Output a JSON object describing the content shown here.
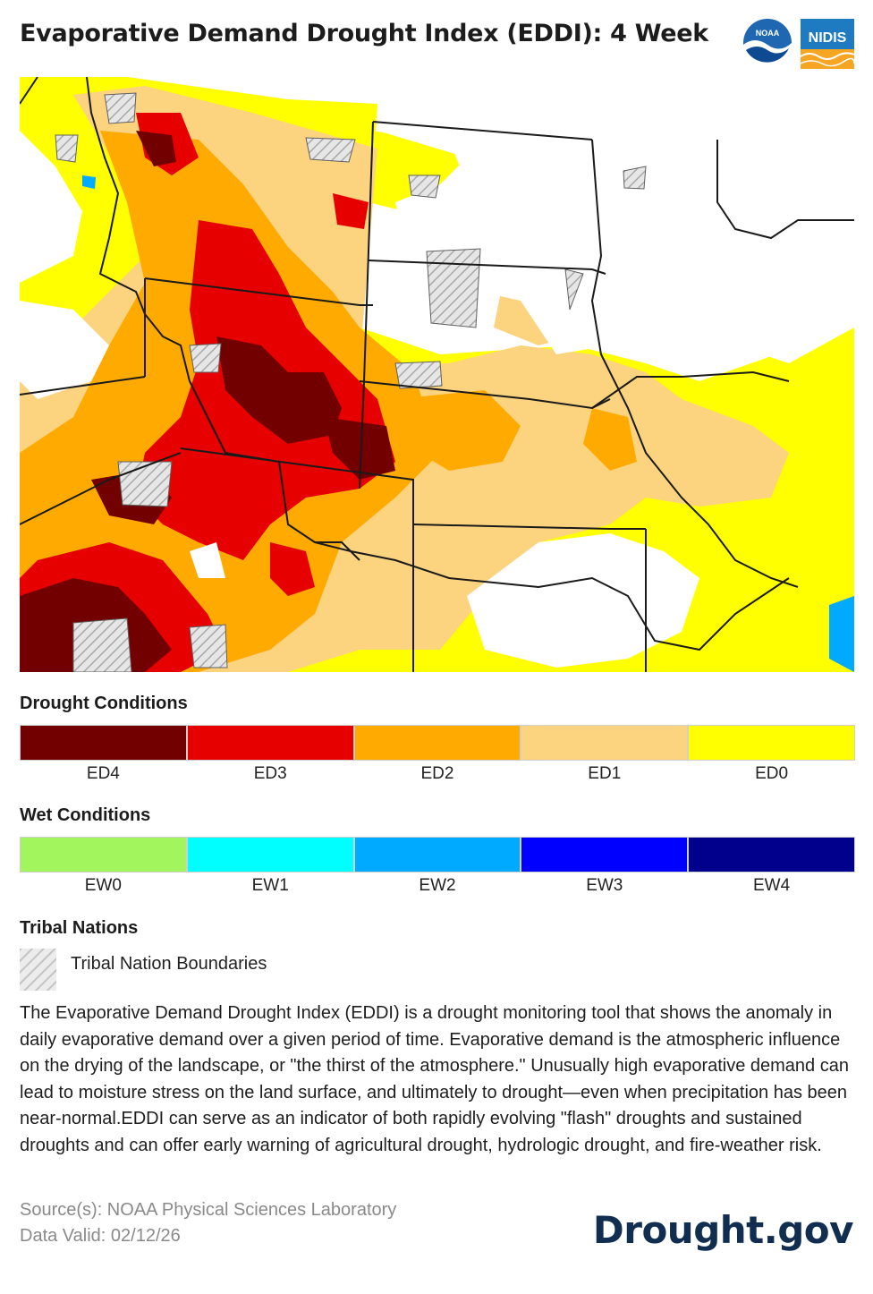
{
  "title": "Evaporative Demand Drought Index (EDDI): 4 Week",
  "logos": {
    "noaa_text": "NOAA",
    "nidis_text": "NIDIS"
  },
  "legend": {
    "drought": {
      "heading": "Drought Conditions",
      "items": [
        {
          "label": "ED4",
          "color": "#730000"
        },
        {
          "label": "ED3",
          "color": "#e60000"
        },
        {
          "label": "ED2",
          "color": "#ffaa00"
        },
        {
          "label": "ED1",
          "color": "#fcd37f"
        },
        {
          "label": "ED0",
          "color": "#ffff00"
        }
      ]
    },
    "wet": {
      "heading": "Wet Conditions",
      "items": [
        {
          "label": "EW0",
          "color": "#a2f55c"
        },
        {
          "label": "EW1",
          "color": "#00ffff"
        },
        {
          "label": "EW2",
          "color": "#00aaff"
        },
        {
          "label": "EW3",
          "color": "#0000ff"
        },
        {
          "label": "EW4",
          "color": "#00008c"
        }
      ]
    },
    "tribal": {
      "heading": "Tribal Nations",
      "label": "Tribal Nation Boundaries"
    }
  },
  "description": "The Evaporative Demand Drought Index (EDDI) is a drought monitoring tool that shows the anomaly in daily evaporative demand over a given period of time. Evaporative demand is the atmospheric influence on the drying of the landscape, or \"the thirst of the atmosphere.\" Unusually high evaporative demand can lead to moisture stress on the land surface, and ultimately to drought—even when precipitation has been near-normal.EDDI can serve as an indicator of both rapidly evolving \"flash\" droughts and sustained droughts and can offer early warning of agricultural drought, hydrologic drought, and fire-weather risk.",
  "source": "Source(s): NOAA Physical Sciences Laboratory",
  "data_valid": "Data Valid: 02/12/26",
  "brand": "Drought.gov"
}
